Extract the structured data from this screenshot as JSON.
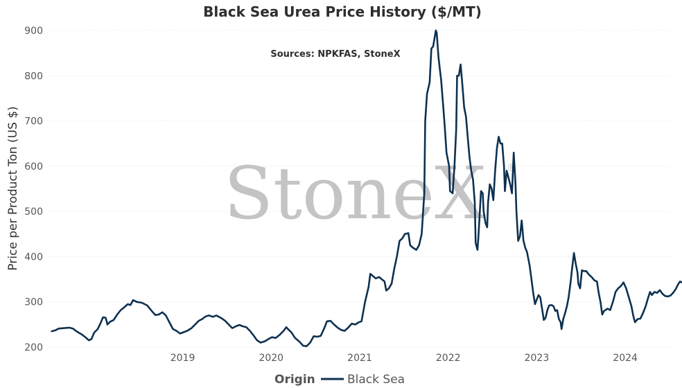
{
  "chart_data": {
    "type": "line",
    "title": "Black Sea Urea Price History ($/MT)",
    "subtitle": "Sources: NPKFAS, StoneX",
    "ylabel": "Price per Product Ton (US $)",
    "xlabel": "",
    "ylim": [
      200,
      900
    ],
    "yticks": [
      200,
      300,
      400,
      500,
      600,
      700,
      800,
      900
    ],
    "xlim": [
      2018.0,
      2025.0
    ],
    "xticks": [
      2019,
      2020,
      2021,
      2022,
      2023,
      2024
    ],
    "grid": "horizontal-dotted",
    "legend": {
      "title": "Origin",
      "position": "bottom-center"
    },
    "watermark": {
      "text": "StoneX",
      "mark": "®"
    },
    "series": [
      {
        "name": "Black Sea",
        "color": "#0d3050",
        "points": [
          [
            2018.02,
            235
          ],
          [
            2018.06,
            237
          ],
          [
            2018.1,
            241
          ],
          [
            2018.16,
            242
          ],
          [
            2018.22,
            243
          ],
          [
            2018.26,
            241
          ],
          [
            2018.3,
            235
          ],
          [
            2018.36,
            228
          ],
          [
            2018.4,
            222
          ],
          [
            2018.44,
            215
          ],
          [
            2018.47,
            218
          ],
          [
            2018.5,
            232
          ],
          [
            2018.54,
            240
          ],
          [
            2018.57,
            252
          ],
          [
            2018.6,
            266
          ],
          [
            2018.63,
            265
          ],
          [
            2018.65,
            250
          ],
          [
            2018.68,
            256
          ],
          [
            2018.72,
            260
          ],
          [
            2018.76,
            272
          ],
          [
            2018.8,
            282
          ],
          [
            2018.84,
            288
          ],
          [
            2018.88,
            295
          ],
          [
            2018.91,
            293
          ],
          [
            2018.94,
            304
          ],
          [
            2018.98,
            300
          ],
          [
            2019.04,
            298
          ],
          [
            2019.1,
            292
          ],
          [
            2019.15,
            280
          ],
          [
            2019.19,
            271
          ],
          [
            2019.23,
            272
          ],
          [
            2019.27,
            277
          ],
          [
            2019.31,
            270
          ],
          [
            2019.35,
            255
          ],
          [
            2019.39,
            240
          ],
          [
            2019.43,
            236
          ],
          [
            2019.47,
            230
          ],
          [
            2019.51,
            233
          ],
          [
            2019.55,
            236
          ],
          [
            2019.6,
            242
          ],
          [
            2019.64,
            250
          ],
          [
            2019.68,
            258
          ],
          [
            2019.72,
            262
          ],
          [
            2019.76,
            268
          ],
          [
            2019.8,
            270
          ],
          [
            2019.84,
            267
          ],
          [
            2019.88,
            270
          ],
          [
            2019.93,
            265
          ],
          [
            2019.98,
            258
          ],
          [
            2020.02,
            250
          ],
          [
            2020.06,
            242
          ],
          [
            2020.1,
            246
          ],
          [
            2020.14,
            249
          ],
          [
            2020.18,
            246
          ],
          [
            2020.22,
            244
          ],
          [
            2020.26,
            236
          ],
          [
            2020.3,
            226
          ],
          [
            2020.34,
            215
          ],
          [
            2020.38,
            210
          ],
          [
            2020.43,
            213
          ],
          [
            2020.47,
            218
          ],
          [
            2020.51,
            222
          ],
          [
            2020.55,
            220
          ],
          [
            2020.6,
            228
          ],
          [
            2020.64,
            236
          ],
          [
            2020.67,
            244
          ],
          [
            2020.7,
            238
          ],
          [
            2020.73,
            232
          ],
          [
            2020.77,
            220
          ],
          [
            2020.82,
            212
          ],
          [
            2020.86,
            203
          ],
          [
            2020.9,
            202
          ],
          [
            2020.94,
            210
          ],
          [
            2020.98,
            224
          ],
          [
            2021.02,
            223
          ],
          [
            2021.06,
            225
          ],
          [
            2021.1,
            242
          ],
          [
            2021.13,
            257
          ],
          [
            2021.17,
            258
          ],
          [
            2021.21,
            250
          ],
          [
            2021.25,
            243
          ],
          [
            2021.29,
            238
          ],
          [
            2021.33,
            236
          ],
          [
            2021.37,
            243
          ],
          [
            2021.41,
            252
          ],
          [
            2021.45,
            250
          ],
          [
            2021.49,
            255
          ],
          [
            2021.52,
            257
          ],
          [
            2021.56,
            300
          ],
          [
            2021.6,
            333
          ],
          [
            2021.62,
            362
          ],
          [
            2021.65,
            357
          ],
          [
            2021.68,
            352
          ],
          [
            2021.72,
            355
          ],
          [
            2021.75,
            350
          ],
          [
            2021.78,
            345
          ],
          [
            2021.8,
            325
          ],
          [
            2021.83,
            330
          ],
          [
            2021.86,
            340
          ],
          [
            2021.89,
            373
          ],
          [
            2021.92,
            400
          ],
          [
            2021.95,
            435
          ],
          [
            2021.98,
            440
          ],
          [
            2022.01,
            450
          ],
          [
            2022.05,
            452
          ],
          [
            2022.07,
            425
          ],
          [
            2022.1,
            420
          ],
          [
            2022.14,
            415
          ],
          [
            2022.17,
            425
          ],
          [
            2022.2,
            450
          ],
          [
            2022.23,
            540
          ],
          [
            2022.24,
            700
          ],
          [
            2022.26,
            760
          ],
          [
            2022.29,
            785
          ],
          [
            2022.31,
            860
          ],
          [
            2022.33,
            865
          ],
          [
            2022.36,
            900
          ],
          [
            2022.37,
            895
          ],
          [
            2022.39,
            840
          ],
          [
            2022.42,
            790
          ],
          [
            2022.44,
            740
          ],
          [
            2022.46,
            690
          ],
          [
            2022.48,
            630
          ],
          [
            2022.51,
            600
          ],
          [
            2022.52,
            545
          ],
          [
            2022.55,
            540
          ],
          [
            2022.57,
            600
          ],
          [
            2022.59,
            680
          ],
          [
            2022.6,
            800
          ],
          [
            2022.62,
            800
          ],
          [
            2022.64,
            825
          ],
          [
            2022.66,
            780
          ],
          [
            2022.68,
            730
          ],
          [
            2022.7,
            710
          ],
          [
            2022.72,
            665
          ],
          [
            2022.74,
            620
          ],
          [
            2022.76,
            590
          ],
          [
            2022.78,
            570
          ],
          [
            2022.8,
            520
          ],
          [
            2022.81,
            430
          ],
          [
            2022.83,
            415
          ],
          [
            2022.84,
            440
          ],
          [
            2022.86,
            510
          ],
          [
            2022.87,
            545
          ],
          [
            2022.89,
            540
          ],
          [
            2022.9,
            500
          ],
          [
            2022.92,
            475
          ],
          [
            2022.94,
            465
          ],
          [
            2022.95,
            520
          ],
          [
            2022.97,
            560
          ],
          [
            2022.99,
            550
          ],
          [
            2023.01,
            525
          ],
          [
            2023.03,
            590
          ],
          [
            2023.05,
            640
          ],
          [
            2023.07,
            665
          ],
          [
            2023.09,
            650
          ],
          [
            2023.11,
            650
          ],
          [
            2023.13,
            600
          ],
          [
            2023.14,
            545
          ],
          [
            2023.16,
            590
          ],
          [
            2023.18,
            575
          ],
          [
            2023.2,
            560
          ],
          [
            2023.22,
            540
          ],
          [
            2023.24,
            630
          ],
          [
            2023.26,
            560
          ],
          [
            2023.27,
            500
          ],
          [
            2023.29,
            435
          ],
          [
            2023.31,
            445
          ],
          [
            2023.33,
            480
          ],
          [
            2023.35,
            435
          ],
          [
            2023.37,
            420
          ],
          [
            2023.39,
            410
          ],
          [
            2023.42,
            380
          ],
          [
            2023.44,
            350
          ],
          [
            2023.46,
            320
          ],
          [
            2023.48,
            295
          ],
          [
            2023.5,
            305
          ],
          [
            2023.52,
            315
          ],
          [
            2023.54,
            310
          ],
          [
            2023.56,
            285
          ],
          [
            2023.58,
            260
          ],
          [
            2023.6,
            265
          ],
          [
            2023.62,
            282
          ],
          [
            2023.64,
            292
          ],
          [
            2023.67,
            293
          ],
          [
            2023.69,
            290
          ],
          [
            2023.71,
            280
          ],
          [
            2023.73,
            282
          ],
          [
            2023.75,
            262
          ],
          [
            2023.77,
            255
          ],
          [
            2023.78,
            240
          ],
          [
            2023.8,
            262
          ],
          [
            2023.82,
            275
          ],
          [
            2023.84,
            290
          ],
          [
            2023.86,
            310
          ],
          [
            2023.88,
            340
          ],
          [
            2023.9,
            375
          ],
          [
            2023.92,
            408
          ],
          [
            2023.94,
            385
          ],
          [
            2023.96,
            365
          ],
          [
            2023.97,
            340
          ],
          [
            2023.99,
            330
          ],
          [
            2024.01,
            370
          ],
          [
            2024.03,
            368
          ],
          [
            2024.06,
            368
          ],
          [
            2024.09,
            360
          ],
          [
            2024.12,
            355
          ],
          [
            2024.15,
            348
          ],
          [
            2024.18,
            345
          ],
          [
            2024.2,
            320
          ],
          [
            2024.22,
            300
          ],
          [
            2024.24,
            272
          ],
          [
            2024.26,
            280
          ],
          [
            2024.3,
            285
          ],
          [
            2024.33,
            282
          ],
          [
            2024.36,
            300
          ],
          [
            2024.39,
            322
          ],
          [
            2024.42,
            330
          ],
          [
            2024.45,
            335
          ],
          [
            2024.48,
            343
          ],
          [
            2024.51,
            330
          ],
          [
            2024.54,
            310
          ],
          [
            2024.57,
            290
          ],
          [
            2024.59,
            270
          ],
          [
            2024.61,
            255
          ],
          [
            2024.64,
            262
          ],
          [
            2024.67,
            263
          ],
          [
            2024.7,
            275
          ],
          [
            2024.73,
            290
          ],
          [
            2024.76,
            310
          ],
          [
            2024.78,
            322
          ],
          [
            2024.8,
            315
          ],
          [
            2024.83,
            322
          ],
          [
            2024.86,
            320
          ],
          [
            2024.89,
            326
          ],
          [
            2024.92,
            318
          ],
          [
            2024.95,
            313
          ],
          [
            2024.98,
            312
          ],
          [
            2025.01,
            314
          ],
          [
            2025.04,
            320
          ],
          [
            2025.07,
            328
          ],
          [
            2025.1,
            340
          ],
          [
            2025.12,
            345
          ],
          [
            2025.15,
            342
          ],
          [
            2025.18,
            333
          ],
          [
            2025.21,
            322
          ],
          [
            2025.24,
            315
          ],
          [
            2025.26,
            308
          ],
          [
            2025.29,
            314
          ],
          [
            2025.31,
            328
          ],
          [
            2025.34,
            332
          ]
        ]
      }
    ]
  }
}
